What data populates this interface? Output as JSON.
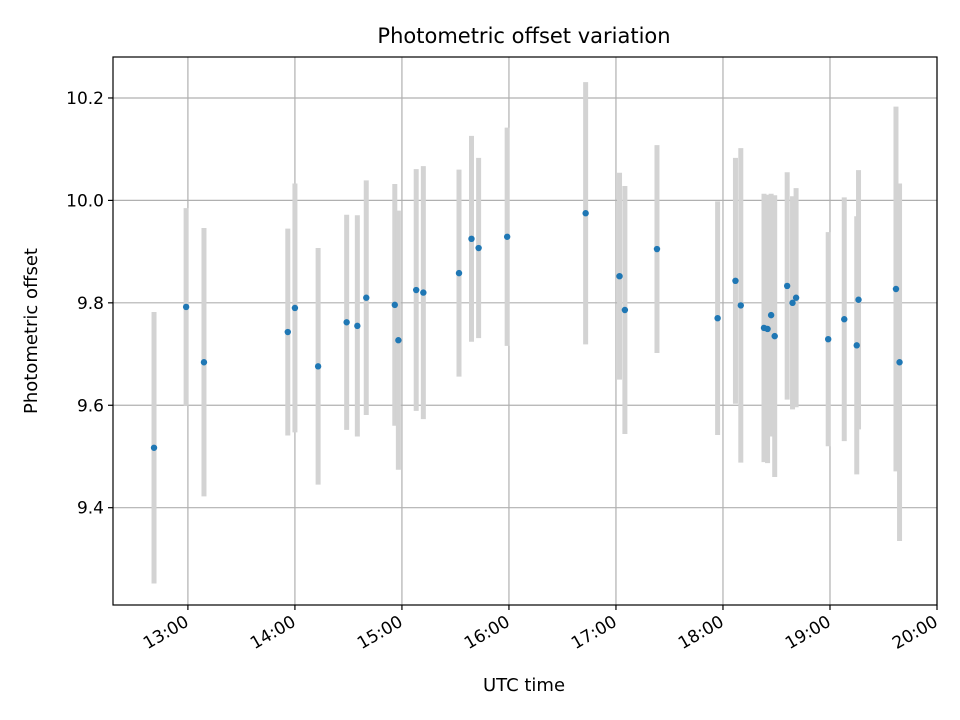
{
  "chart_data": {
    "type": "scatter",
    "title": "Photometric offset variation",
    "xlabel": "UTC time",
    "ylabel": "Photometric offset",
    "x_axis_type": "time",
    "xlim": [
      "12:18",
      "20:00"
    ],
    "ylim": [
      9.21,
      10.28
    ],
    "xticks": [
      "13:00",
      "14:00",
      "15:00",
      "16:00",
      "17:00",
      "18:00",
      "19:00",
      "20:00"
    ],
    "yticks": [
      9.4,
      9.6,
      9.8,
      10.0,
      10.2
    ],
    "ytick_labels": [
      "9.4",
      "9.6",
      "9.8",
      "10.0",
      "10.2"
    ],
    "grid": true,
    "point_color": "#1f77b4",
    "errorbar_color": "#d3d3d3",
    "series": [
      {
        "points": [
          {
            "time": "12:41",
            "y": 9.517,
            "err": 0.265
          },
          {
            "time": "12:59",
            "y": 9.792,
            "err": 0.193
          },
          {
            "time": "13:09",
            "y": 9.684,
            "err": 0.262
          },
          {
            "time": "13:56",
            "y": 9.743,
            "err": 0.202
          },
          {
            "time": "14:00",
            "y": 9.79,
            "err": 0.243
          },
          {
            "time": "14:13",
            "y": 9.676,
            "err": 0.231
          },
          {
            "time": "14:29",
            "y": 9.762,
            "err": 0.21
          },
          {
            "time": "14:35",
            "y": 9.755,
            "err": 0.216
          },
          {
            "time": "14:40",
            "y": 9.81,
            "err": 0.229
          },
          {
            "time": "14:56",
            "y": 9.796,
            "err": 0.236
          },
          {
            "time": "14:58",
            "y": 9.727,
            "err": 0.253
          },
          {
            "time": "15:08",
            "y": 9.825,
            "err": 0.236
          },
          {
            "time": "15:12",
            "y": 9.82,
            "err": 0.247
          },
          {
            "time": "15:32",
            "y": 9.858,
            "err": 0.202
          },
          {
            "time": "15:39",
            "y": 9.925,
            "err": 0.201
          },
          {
            "time": "15:43",
            "y": 9.907,
            "err": 0.176
          },
          {
            "time": "15:59",
            "y": 9.929,
            "err": 0.213
          },
          {
            "time": "16:43",
            "y": 9.975,
            "err": 0.256
          },
          {
            "time": "17:02",
            "y": 9.852,
            "err": 0.202
          },
          {
            "time": "17:05",
            "y": 9.786,
            "err": 0.242
          },
          {
            "time": "17:23",
            "y": 9.905,
            "err": 0.203
          },
          {
            "time": "17:57",
            "y": 9.77,
            "err": 0.228
          },
          {
            "time": "18:07",
            "y": 9.843,
            "err": 0.24
          },
          {
            "time": "18:10",
            "y": 9.795,
            "err": 0.307
          },
          {
            "time": "18:23",
            "y": 9.751,
            "err": 0.262
          },
          {
            "time": "18:25",
            "y": 9.749,
            "err": 0.262
          },
          {
            "time": "18:27",
            "y": 9.776,
            "err": 0.237
          },
          {
            "time": "18:29",
            "y": 9.735,
            "err": 0.275
          },
          {
            "time": "18:36",
            "y": 9.833,
            "err": 0.222
          },
          {
            "time": "18:39",
            "y": 9.8,
            "err": 0.208
          },
          {
            "time": "18:41",
            "y": 9.81,
            "err": 0.214
          },
          {
            "time": "18:59",
            "y": 9.729,
            "err": 0.209
          },
          {
            "time": "19:08",
            "y": 9.768,
            "err": 0.238
          },
          {
            "time": "19:15",
            "y": 9.717,
            "err": 0.252
          },
          {
            "time": "19:16",
            "y": 9.806,
            "err": 0.253
          },
          {
            "time": "19:37",
            "y": 9.827,
            "err": 0.356
          },
          {
            "time": "19:39",
            "y": 9.684,
            "err": 0.349
          }
        ]
      }
    ]
  }
}
